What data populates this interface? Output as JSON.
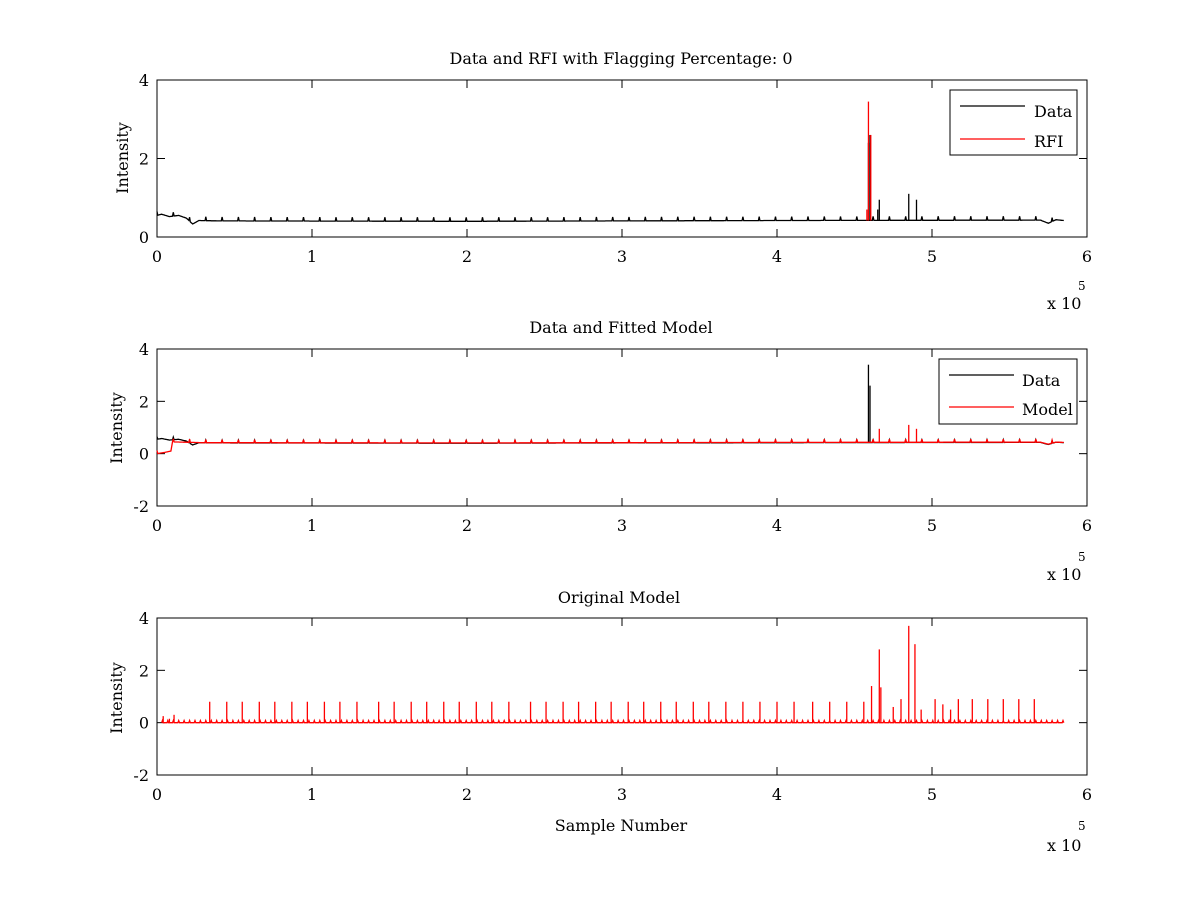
{
  "colors": {
    "data": "#000000",
    "rfi": "#ff0000",
    "model": "#ff0000",
    "background": "#ffffff",
    "axes": "#000000"
  },
  "chart_data": [
    {
      "type": "line",
      "title": "Data and RFI with Flagging Percentage: 0",
      "xlabel": "",
      "ylabel": "Intensity",
      "xlim": [
        0,
        600000
      ],
      "ylim": [
        0,
        4
      ],
      "xticks": [
        "0",
        "1",
        "2",
        "3",
        "4",
        "5",
        "6"
      ],
      "yticks": [
        "0",
        "2",
        "4"
      ],
      "x_multiplier": {
        "base": "x 10",
        "exponent": "5"
      },
      "legend": {
        "placement": "top-right",
        "entries": [
          "Data",
          "RFI"
        ]
      },
      "grid": false,
      "series": [
        {
          "name": "Data",
          "baseline": [
            [
              0,
              0.55
            ],
            [
              3000,
              0.58
            ],
            [
              8000,
              0.52
            ],
            [
              14000,
              0.55
            ],
            [
              19000,
              0.48
            ],
            [
              23000,
              0.33
            ],
            [
              27000,
              0.42
            ],
            [
              40000,
              0.41
            ],
            [
              200000,
              0.4
            ],
            [
              400000,
              0.42
            ],
            [
              570000,
              0.43
            ],
            [
              575000,
              0.35
            ],
            [
              580000,
              0.44
            ],
            [
              585000,
              0.42
            ]
          ],
          "spikes": [
            [
              459000,
              2.4
            ],
            [
              460000,
              2.6
            ],
            [
              466000,
              0.95
            ],
            [
              485000,
              1.1
            ],
            [
              490000,
              0.95
            ],
            [
              465000,
              0.7
            ]
          ],
          "comb_spacing": 10500,
          "comb_height": 0.1
        },
        {
          "name": "RFI",
          "spikes": [
            [
              459000,
              3.45
            ],
            [
              460500,
              2.6
            ],
            [
              458000,
              0.7
            ]
          ]
        }
      ]
    },
    {
      "type": "line",
      "title": "Data and Fitted Model",
      "xlabel": "",
      "ylabel": "Intensity",
      "xlim": [
        0,
        600000
      ],
      "ylim": [
        -2,
        4
      ],
      "xticks": [
        "0",
        "1",
        "2",
        "3",
        "4",
        "5",
        "6"
      ],
      "yticks": [
        "-2",
        "0",
        "2",
        "4"
      ],
      "x_multiplier": {
        "base": "x 10",
        "exponent": "5"
      },
      "legend": {
        "placement": "top-right",
        "entries": [
          "Data",
          "Model"
        ]
      },
      "grid": false,
      "series": [
        {
          "name": "Data",
          "baseline": [
            [
              0,
              0.55
            ],
            [
              3000,
              0.58
            ],
            [
              8000,
              0.52
            ],
            [
              14000,
              0.55
            ],
            [
              19000,
              0.48
            ],
            [
              23000,
              0.33
            ],
            [
              27000,
              0.42
            ],
            [
              40000,
              0.41
            ],
            [
              200000,
              0.4
            ],
            [
              400000,
              0.42
            ],
            [
              570000,
              0.43
            ],
            [
              575000,
              0.35
            ],
            [
              580000,
              0.44
            ],
            [
              585000,
              0.42
            ]
          ],
          "spikes": [
            [
              459000,
              3.4
            ],
            [
              460000,
              2.6
            ]
          ],
          "comb_spacing": 10500,
          "comb_height": 0.1
        },
        {
          "name": "Model",
          "baseline": [
            [
              0,
              0.0
            ],
            [
              5000,
              0.05
            ],
            [
              9000,
              0.1
            ],
            [
              10000,
              0.45
            ],
            [
              30000,
              0.42
            ],
            [
              200000,
              0.41
            ],
            [
              400000,
              0.43
            ],
            [
              570000,
              0.44
            ],
            [
              575000,
              0.36
            ],
            [
              580000,
              0.44
            ],
            [
              585000,
              0.43
            ]
          ],
          "spikes": [
            [
              466000,
              0.95
            ],
            [
              485000,
              1.1
            ],
            [
              490000,
              0.95
            ]
          ],
          "comb_spacing": 10500,
          "comb_height": 0.12
        }
      ]
    },
    {
      "type": "line",
      "title": "Original Model",
      "xlabel": "Sample Number",
      "ylabel": "Intensity",
      "xlim": [
        0,
        600000
      ],
      "ylim": [
        -2,
        4
      ],
      "xticks": [
        "0",
        "1",
        "2",
        "3",
        "4",
        "5",
        "6"
      ],
      "yticks": [
        "-2",
        "0",
        "2",
        "4"
      ],
      "x_multiplier": {
        "base": "x 10",
        "exponent": "5"
      },
      "grid": false,
      "series": [
        {
          "name": "",
          "baseline": [
            [
              3000,
              0.0
            ],
            [
              585000,
              0.0
            ]
          ],
          "spikes": [
            [
              4000,
              0.25
            ],
            [
              8000,
              0.15
            ],
            [
              11000,
              0.3
            ],
            [
              34000,
              0.8
            ],
            [
              45000,
              0.8
            ],
            [
              55000,
              0.8
            ],
            [
              66000,
              0.8
            ],
            [
              76000,
              0.8
            ],
            [
              87000,
              0.8
            ],
            [
              97000,
              0.8
            ],
            [
              108000,
              0.8
            ],
            [
              118000,
              0.8
            ],
            [
              129000,
              0.8
            ],
            [
              143000,
              0.8
            ],
            [
              153000,
              0.8
            ],
            [
              164000,
              0.8
            ],
            [
              174000,
              0.8
            ],
            [
              185000,
              0.8
            ],
            [
              195000,
              0.8
            ],
            [
              206000,
              0.8
            ],
            [
              216000,
              0.8
            ],
            [
              227000,
              0.8
            ],
            [
              241000,
              0.8
            ],
            [
              251000,
              0.8
            ],
            [
              262000,
              0.8
            ],
            [
              272000,
              0.8
            ],
            [
              283000,
              0.8
            ],
            [
              293000,
              0.8
            ],
            [
              304000,
              0.8
            ],
            [
              314000,
              0.8
            ],
            [
              325000,
              0.8
            ],
            [
              335000,
              0.8
            ],
            [
              346000,
              0.8
            ],
            [
              356000,
              0.8
            ],
            [
              367000,
              0.8
            ],
            [
              378000,
              0.8
            ],
            [
              389000,
              0.8
            ],
            [
              400000,
              0.8
            ],
            [
              411000,
              0.8
            ],
            [
              423000,
              0.8
            ],
            [
              434000,
              0.8
            ],
            [
              445000,
              0.8
            ],
            [
              456000,
              0.8
            ],
            [
              461000,
              1.4
            ],
            [
              466000,
              2.8
            ],
            [
              467000,
              1.35
            ],
            [
              475000,
              0.6
            ],
            [
              480000,
              0.9
            ],
            [
              485000,
              3.7
            ],
            [
              489000,
              3.0
            ],
            [
              493000,
              0.5
            ],
            [
              502000,
              0.9
            ],
            [
              507000,
              0.7
            ],
            [
              512000,
              0.5
            ],
            [
              517000,
              0.9
            ],
            [
              526000,
              0.9
            ],
            [
              536000,
              0.9
            ],
            [
              546000,
              0.9
            ],
            [
              556000,
              0.9
            ],
            [
              566000,
              0.9
            ]
          ],
          "comb_spacing": 3500,
          "comb_height": 0.08
        }
      ]
    }
  ]
}
